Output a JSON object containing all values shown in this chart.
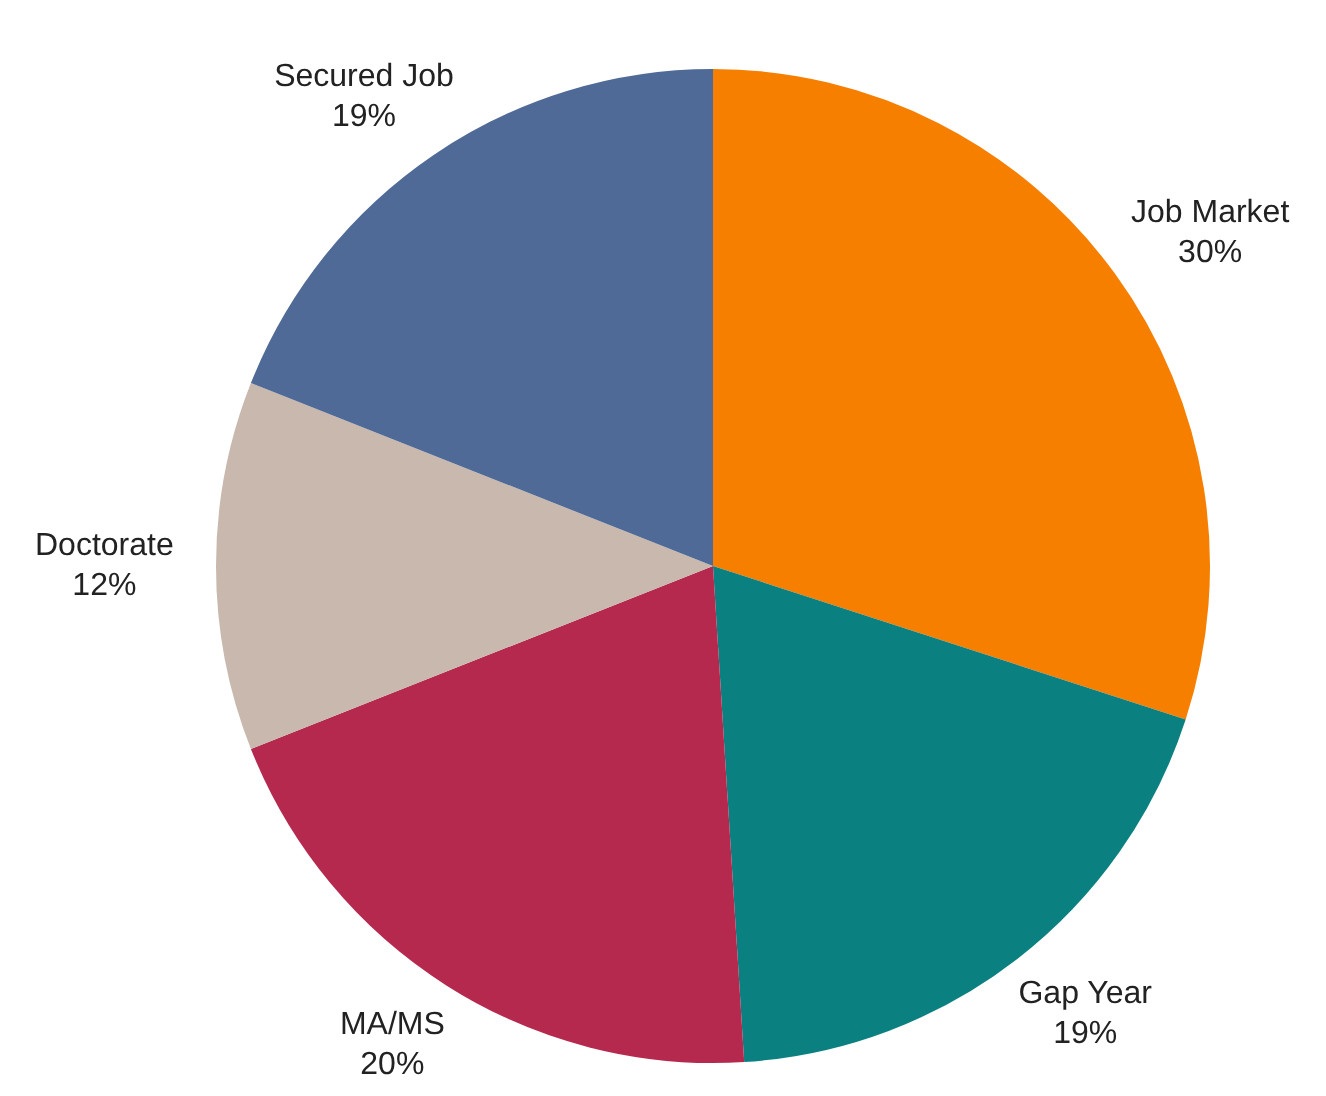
{
  "chart_data": {
    "type": "pie",
    "categories": [
      "Job Market",
      "Gap Year",
      "MA/MS",
      "Doctorate",
      "Secured Job"
    ],
    "values": [
      30,
      19,
      20,
      12,
      19
    ],
    "colors": [
      "#f77f00",
      "#0a8080",
      "#b5294e",
      "#c9b8ae",
      "#4f6a96"
    ],
    "value_labels": [
      "30%",
      "19%",
      "20%",
      "12%",
      "19%"
    ],
    "legend": false
  }
}
